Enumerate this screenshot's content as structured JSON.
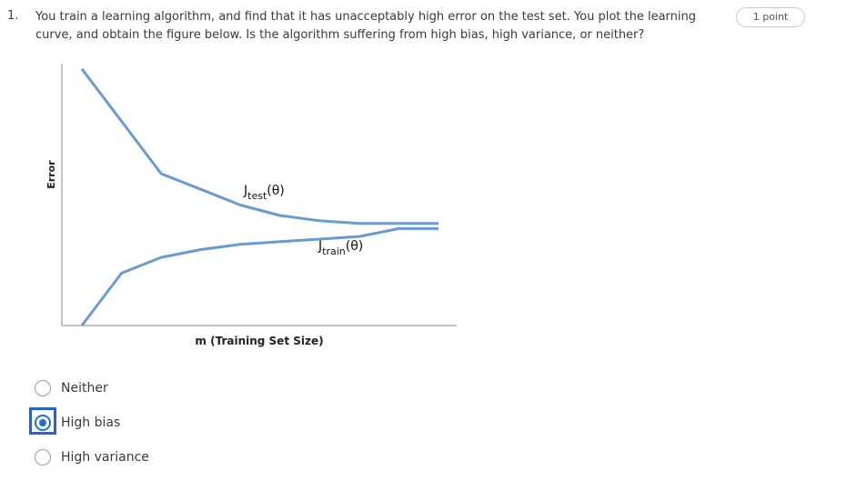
{
  "question": {
    "number": "1.",
    "text": "You train a learning algorithm, and find that it has unacceptably high error on the test set. You plot the learning curve, and obtain the figure below. Is the algorithm suffering from high bias, high variance, or neither?",
    "points": "1 point"
  },
  "chart_data": {
    "type": "line",
    "xlabel": "m (Training Set Size)",
    "ylabel": "Error",
    "grid": false,
    "x": [
      1,
      2,
      3,
      4,
      5,
      6,
      7,
      8,
      9,
      10
    ],
    "series": [
      {
        "name": "Jtest(θ)",
        "label_main": "J",
        "label_sub": "test",
        "label_tail": "(θ)",
        "color": "#6a9ad3",
        "values": [
          0.98,
          0.78,
          0.58,
          0.52,
          0.46,
          0.42,
          0.4,
          0.39,
          0.39,
          0.39
        ]
      },
      {
        "name": "Jtrain(θ)",
        "label_main": "J",
        "label_sub": "train",
        "label_tail": "(θ)",
        "color": "#6a9ad3",
        "values": [
          0.0,
          0.2,
          0.26,
          0.29,
          0.31,
          0.32,
          0.33,
          0.34,
          0.37,
          0.37
        ]
      }
    ]
  },
  "options": [
    {
      "label": "Neither",
      "selected": false
    },
    {
      "label": "High bias",
      "selected": true
    },
    {
      "label": "High variance",
      "selected": false
    }
  ],
  "colors": {
    "accent": "#1f6fd6",
    "curve": "#6a9ad3",
    "axis": "#b0b0b0"
  }
}
